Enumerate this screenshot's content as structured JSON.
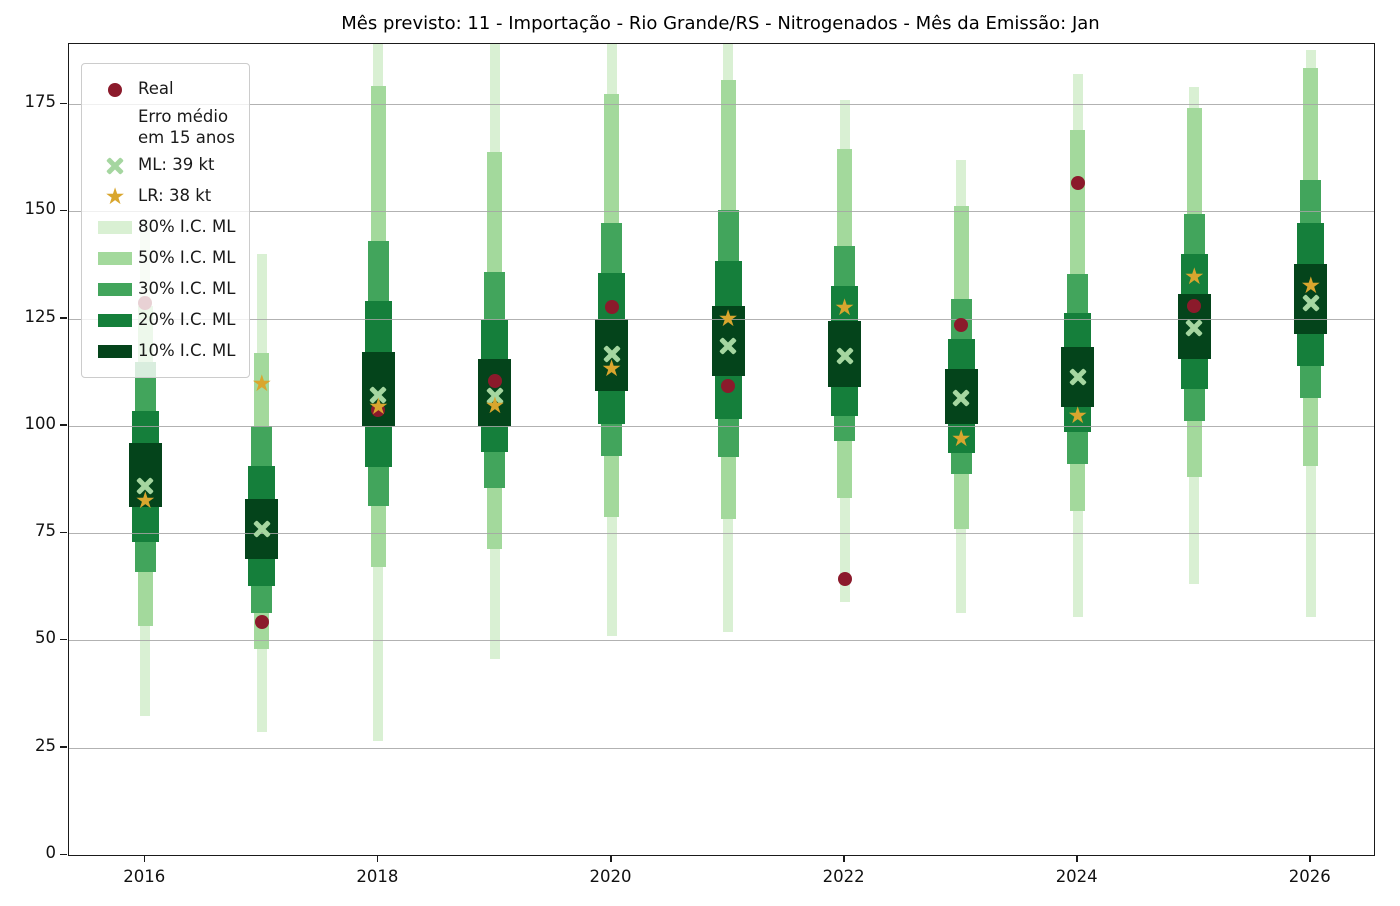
{
  "chart_data": {
    "type": "bar",
    "subtype": "nested-confidence-interval-fan",
    "title": "Mês previsto: 11 - Importação - Rio Grande/RS - Nitrogenados - Mês da Emissão: Jan",
    "xlabel": "",
    "ylabel": "",
    "ylim": [
      0,
      189
    ],
    "y_ticks": [
      "0",
      "25",
      "50",
      "75",
      "100",
      "125",
      "150",
      "175"
    ],
    "y_tick_values": [
      0,
      25,
      50,
      75,
      100,
      125,
      150,
      175
    ],
    "x_tick_labels": [
      "2016",
      "2018",
      "2020",
      "2022",
      "2024",
      "2026"
    ],
    "x_tick_years": [
      2016,
      2018,
      2020,
      2022,
      2024,
      2026
    ],
    "grid": "horizontal",
    "legend_position": "upper-left",
    "categories": [
      2016,
      2017,
      2018,
      2019,
      2020,
      2021,
      2022,
      2023,
      2024,
      2025,
      2026
    ],
    "intervals": {
      "p80": [
        [
          32.4,
          148
        ],
        [
          28.6,
          140
        ],
        [
          26.6,
          189
        ],
        [
          45.7,
          189
        ],
        [
          51,
          189
        ],
        [
          52,
          189
        ],
        [
          58.9,
          176
        ],
        [
          56.5,
          162
        ],
        [
          55.4,
          182
        ],
        [
          63.2,
          179
        ],
        [
          55.4,
          187.5
        ]
      ],
      "p50": [
        [
          53.4,
          128
        ],
        [
          48,
          117
        ],
        [
          67,
          179.3
        ],
        [
          71.3,
          163.8
        ],
        [
          78.7,
          177.3
        ],
        [
          78.3,
          180.6
        ],
        [
          83.3,
          164.5
        ],
        [
          75.9,
          151.3
        ],
        [
          80.2,
          169
        ],
        [
          88,
          174
        ],
        [
          90.7,
          183.3
        ]
      ],
      "p30": [
        [
          66,
          115
        ],
        [
          56.5,
          100
        ],
        [
          81.3,
          143
        ],
        [
          85.6,
          135.9
        ],
        [
          93,
          147.2
        ],
        [
          92.7,
          150.3
        ],
        [
          96.5,
          142
        ],
        [
          88.8,
          129.6
        ],
        [
          91.1,
          135.4
        ],
        [
          101.2,
          149.4
        ],
        [
          106.6,
          157.2
        ]
      ],
      "p20": [
        [
          73,
          103.5
        ],
        [
          62.8,
          90.7
        ],
        [
          90.4,
          129.1
        ],
        [
          93.8,
          124.7
        ],
        [
          100.4,
          135.6
        ],
        [
          101.6,
          138.5
        ],
        [
          102.4,
          132.5
        ],
        [
          93.8,
          120.2
        ],
        [
          98.5,
          126.2
        ],
        [
          108.6,
          140
        ],
        [
          114,
          147.2
        ]
      ],
      "p10": [
        [
          81,
          96
        ],
        [
          69,
          83
        ],
        [
          100,
          117.3
        ],
        [
          100,
          115.6
        ],
        [
          108.2,
          124.9
        ],
        [
          111.7,
          128
        ],
        [
          109,
          124.5
        ],
        [
          100.4,
          113.3
        ],
        [
          104.3,
          118.3
        ],
        [
          115.6,
          130.7
        ],
        [
          121.4,
          137.8
        ]
      ]
    },
    "series": [
      {
        "name": "Real",
        "marker": "dot",
        "values": [
          128.7,
          54.3,
          103.6,
          110.5,
          127.6,
          109.4,
          64.4,
          123.5,
          156.7,
          128,
          null
        ]
      },
      {
        "name": "ML",
        "marker": "x",
        "values": [
          86,
          76,
          107.2,
          107,
          116.8,
          118.7,
          116.3,
          106.6,
          111.5,
          122.9,
          128.7
        ]
      },
      {
        "name": "LR",
        "marker": "star",
        "values": [
          82.5,
          109.8,
          104.5,
          104.7,
          113.3,
          124.9,
          127.4,
          96.9,
          102.4,
          134.8,
          132.6
        ]
      }
    ],
    "legend": [
      {
        "marker": "dot",
        "label": "Real"
      },
      {
        "marker": "none",
        "label": "Erro médio\nem 15 anos"
      },
      {
        "marker": "x",
        "label": "ML: 39 kt"
      },
      {
        "marker": "star",
        "label": "LR: 38 kt"
      },
      {
        "marker": "patch80",
        "label": "80% I.C. ML"
      },
      {
        "marker": "patch50",
        "label": "50% I.C. ML"
      },
      {
        "marker": "patch30",
        "label": "30% I.C. ML"
      },
      {
        "marker": "patch20",
        "label": "20% I.C. ML"
      },
      {
        "marker": "patch10",
        "label": "10% I.C. ML"
      }
    ],
    "colors": {
      "p80": "#d9f0d3",
      "p50": "#a3d99c",
      "p30": "#42a55c",
      "p20": "#157f3b",
      "p10": "#04441b",
      "real": "#8b1a2b",
      "ml": "#a5d6a0",
      "lr": "#d9a62e",
      "grid": "#a5a5a5",
      "spine": "#1a1a1a"
    }
  }
}
